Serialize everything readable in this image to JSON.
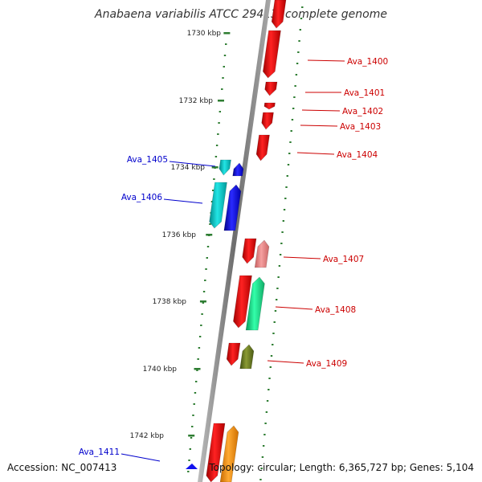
{
  "title": "Anabaena variabilis ATCC 29413, complete genome",
  "accession_text": "Accession: NC_007413",
  "summary_text": "Topology: circular; Length: 6,365,727 bp; Genes: 5,104",
  "colors": {
    "backbone": "#7a7a7a",
    "ruler_dots": "#2e7d32",
    "forward_label": "#cc0000",
    "reverse_label": "#0000cc",
    "ruler_label": "#222222"
  },
  "ruler_ticks": [
    "1730 kbp",
    "1732 kbp",
    "1734 kbp",
    "1736 kbp",
    "1738 kbp",
    "1740 kbp",
    "1742 kbp"
  ],
  "forward_genes": [
    {
      "label": "Ava_1400",
      "color": "#ee1111"
    },
    {
      "label": "Ava_1401",
      "color": "#ee1111"
    },
    {
      "label": "Ava_1402",
      "color": "#ee1111"
    },
    {
      "label": "Ava_1403",
      "color": "#ee1111"
    },
    {
      "label": "Ava_1404",
      "color": "#ee1111"
    },
    {
      "label": "Ava_1407",
      "color": "#ee8888"
    },
    {
      "label": "Ava_1408",
      "color": "#22ee99"
    },
    {
      "label": "Ava_1409",
      "color": "#667722"
    }
  ],
  "reverse_genes": [
    {
      "label": "Ava_1405",
      "color": "#1111ee"
    },
    {
      "label": "Ava_1406",
      "color": "#1111cc"
    },
    {
      "label": "Ava_1411",
      "color": "#1111ee"
    }
  ]
}
